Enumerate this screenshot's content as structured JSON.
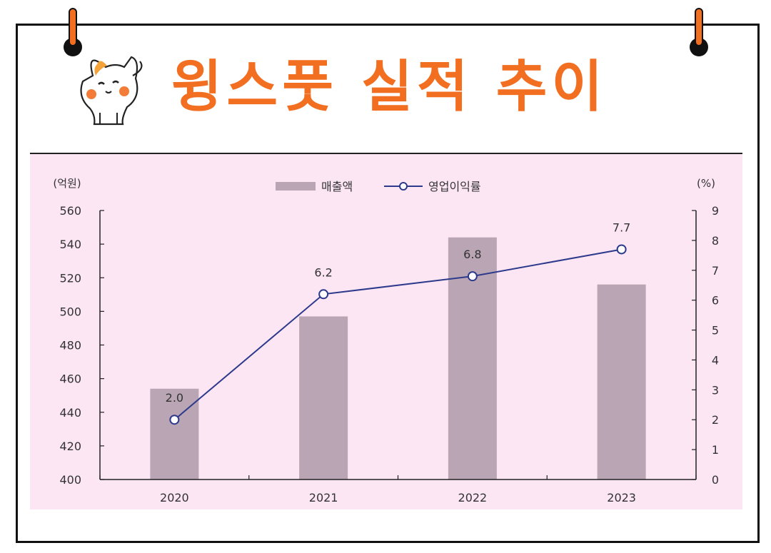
{
  "header": {
    "title": "윙스풋 실적 추이"
  },
  "colors": {
    "accent": "#f26f22",
    "chart_bg": "#fce6f4",
    "bar": "#b9a5b3",
    "line": "#2d3a8c"
  },
  "chart_data": {
    "type": "bar",
    "categories": [
      "2020",
      "2021",
      "2022",
      "2023"
    ],
    "series": [
      {
        "name": "매출액",
        "type": "bar",
        "axis": "left",
        "values": [
          454,
          497,
          544,
          516
        ]
      },
      {
        "name": "영업이익률",
        "type": "line",
        "axis": "right",
        "values": [
          2.0,
          6.2,
          6.8,
          7.7
        ],
        "labels": [
          "2.0",
          "6.2",
          "6.8",
          "7.7"
        ]
      }
    ],
    "y_left": {
      "unit": "(억원)",
      "range": [
        400,
        560
      ],
      "ticks": [
        "400",
        "420",
        "440",
        "460",
        "480",
        "500",
        "520",
        "540",
        "560"
      ]
    },
    "y_right": {
      "unit": "(%)",
      "range": [
        0,
        9
      ],
      "ticks": [
        "0",
        "1",
        "2",
        "3",
        "4",
        "5",
        "6",
        "7",
        "8",
        "9"
      ]
    },
    "legend": {
      "position": "top-center"
    },
    "grid": false
  }
}
